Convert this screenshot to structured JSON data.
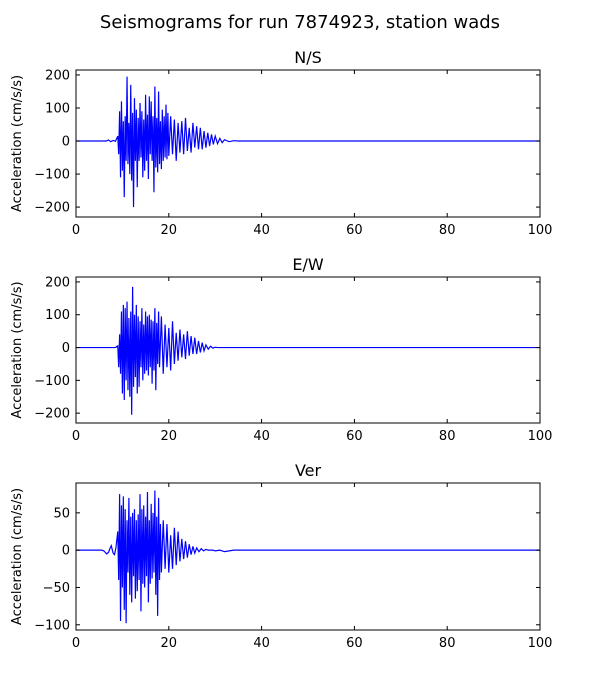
{
  "figure": {
    "suptitle": "Seismograms for run 7874923, station wads",
    "line_color": "#0000ff"
  },
  "chart_data": [
    {
      "type": "line",
      "title": "N/S",
      "xlabel": "",
      "ylabel": "Acceleration (cm/s/s)",
      "xlim": [
        0,
        100
      ],
      "ylim": [
        -230,
        215
      ],
      "xticks": [
        0,
        20,
        40,
        60,
        80,
        100
      ],
      "yticks": [
        -200,
        -100,
        0,
        100,
        200
      ],
      "x_tick_labels": [
        "0",
        "20",
        "40",
        "60",
        "80",
        "100"
      ],
      "y_tick_labels": [
        "−200",
        "−100",
        "0",
        "100",
        "200"
      ],
      "grid": false,
      "series": [
        {
          "color": "#0000ff",
          "x": [
            0,
            6.5,
            7.0,
            7.5,
            8.0,
            8.5,
            9.0,
            9.2,
            9.4,
            9.6,
            9.8,
            10.0,
            10.2,
            10.4,
            10.6,
            10.8,
            11.0,
            11.2,
            11.4,
            11.6,
            11.8,
            12.0,
            12.2,
            12.4,
            12.6,
            12.8,
            13.0,
            13.2,
            13.4,
            13.6,
            13.8,
            14.0,
            14.2,
            14.4,
            14.6,
            14.8,
            15.0,
            15.2,
            15.4,
            15.6,
            15.8,
            16.0,
            16.2,
            16.4,
            16.6,
            16.8,
            17.0,
            17.2,
            17.4,
            17.6,
            17.8,
            18.0,
            18.2,
            18.4,
            18.6,
            18.8,
            19.0,
            19.2,
            19.4,
            19.6,
            19.8,
            20.0,
            20.4,
            20.8,
            21.2,
            21.6,
            22.0,
            22.4,
            22.8,
            23.2,
            23.6,
            24.0,
            24.4,
            24.8,
            25.2,
            25.6,
            26.0,
            26.4,
            26.8,
            27.2,
            27.6,
            28.0,
            28.4,
            28.8,
            29.2,
            29.6,
            30.0,
            30.5,
            31.0,
            31.5,
            32.0,
            33.0,
            34.0,
            35.0,
            100
          ],
          "y": [
            0,
            0,
            3,
            -2,
            2,
            -1,
            15,
            -40,
            90,
            -110,
            120,
            -90,
            60,
            -170,
            75,
            -60,
            195,
            -70,
            55,
            -100,
            170,
            -120,
            85,
            -200,
            130,
            -60,
            95,
            -140,
            70,
            -60,
            115,
            -50,
            90,
            -110,
            65,
            -90,
            140,
            -60,
            80,
            -115,
            135,
            -40,
            120,
            -60,
            75,
            -155,
            165,
            -80,
            70,
            -95,
            150,
            -70,
            60,
            -85,
            95,
            -60,
            75,
            -50,
            110,
            -55,
            85,
            -45,
            75,
            -40,
            65,
            -60,
            55,
            -35,
            60,
            -40,
            70,
            -30,
            40,
            -35,
            55,
            -20,
            45,
            -25,
            40,
            -25,
            30,
            -20,
            25,
            -15,
            20,
            -10,
            15,
            -8,
            8,
            -5,
            4,
            -2,
            1,
            0,
            0
          ]
        }
      ]
    },
    {
      "type": "line",
      "title": "E/W",
      "xlabel": "",
      "ylabel": "Acceleration (cm/s/s)",
      "xlim": [
        0,
        100
      ],
      "ylim": [
        -230,
        215
      ],
      "xticks": [
        0,
        20,
        40,
        60,
        80,
        100
      ],
      "yticks": [
        -200,
        -100,
        0,
        100,
        200
      ],
      "x_tick_labels": [
        "0",
        "20",
        "40",
        "60",
        "80",
        "100"
      ],
      "y_tick_labels": [
        "−200",
        "−100",
        "0",
        "100",
        "200"
      ],
      "grid": false,
      "series": [
        {
          "color": "#0000ff",
          "x": [
            0,
            8.5,
            9.0,
            9.2,
            9.4,
            9.6,
            9.8,
            10.0,
            10.2,
            10.4,
            10.6,
            10.8,
            11.0,
            11.2,
            11.4,
            11.6,
            11.8,
            12.0,
            12.2,
            12.4,
            12.6,
            12.8,
            13.0,
            13.2,
            13.4,
            13.6,
            13.8,
            14.0,
            14.2,
            14.4,
            14.6,
            14.8,
            15.0,
            15.2,
            15.4,
            15.6,
            15.8,
            16.0,
            16.2,
            16.4,
            16.6,
            16.8,
            17.0,
            17.2,
            17.4,
            17.6,
            17.8,
            18.0,
            18.4,
            18.8,
            19.2,
            19.6,
            20.0,
            20.4,
            20.8,
            21.2,
            21.6,
            22.0,
            22.4,
            22.8,
            23.2,
            23.6,
            24.0,
            24.4,
            24.8,
            25.2,
            25.6,
            26.0,
            26.4,
            26.8,
            27.2,
            27.6,
            28.0,
            28.5,
            29.0,
            29.5,
            30.0,
            30.5,
            31.0,
            32.0,
            33.0,
            100
          ],
          "y": [
            0,
            0,
            5,
            -60,
            40,
            -80,
            110,
            -140,
            130,
            -160,
            120,
            -100,
            140,
            -130,
            90,
            -150,
            110,
            -205,
            185,
            -120,
            100,
            -90,
            130,
            -140,
            95,
            -120,
            80,
            -60,
            120,
            -100,
            70,
            -80,
            110,
            -70,
            95,
            -85,
            100,
            -60,
            85,
            -110,
            80,
            -70,
            120,
            -130,
            75,
            -50,
            110,
            -60,
            95,
            -80,
            70,
            -60,
            60,
            -70,
            80,
            -50,
            45,
            -40,
            55,
            -30,
            40,
            -35,
            50,
            -25,
            35,
            -20,
            30,
            -20,
            20,
            -15,
            15,
            -10,
            8,
            -5,
            4,
            -2,
            1,
            0,
            0,
            0,
            0,
            0
          ]
        }
      ]
    },
    {
      "type": "line",
      "title": "Ver",
      "xlabel": "",
      "ylabel": "Acceleration (cm/s/s)",
      "xlim": [
        0,
        100
      ],
      "ylim": [
        -107,
        90
      ],
      "xticks": [
        0,
        20,
        40,
        60,
        80,
        100
      ],
      "yticks": [
        -100,
        -50,
        0,
        50
      ],
      "x_tick_labels": [
        "0",
        "20",
        "40",
        "60",
        "80",
        "100"
      ],
      "y_tick_labels": [
        "−100",
        "−50",
        "0",
        "50"
      ],
      "grid": false,
      "series": [
        {
          "color": "#0000ff",
          "x": [
            0,
            5.5,
            6.0,
            6.3,
            6.6,
            7.0,
            7.3,
            7.6,
            8.0,
            8.3,
            8.6,
            9.0,
            9.2,
            9.4,
            9.6,
            9.8,
            10.0,
            10.2,
            10.4,
            10.6,
            10.8,
            11.0,
            11.2,
            11.4,
            11.6,
            11.8,
            12.0,
            12.2,
            12.4,
            12.6,
            12.8,
            13.0,
            13.2,
            13.4,
            13.6,
            13.8,
            14.0,
            14.2,
            14.4,
            14.6,
            14.8,
            15.0,
            15.2,
            15.4,
            15.6,
            15.8,
            16.0,
            16.2,
            16.4,
            16.6,
            16.8,
            17.0,
            17.2,
            17.4,
            17.6,
            17.8,
            18.0,
            18.2,
            18.4,
            18.8,
            19.2,
            19.6,
            20.0,
            20.4,
            20.8,
            21.2,
            21.6,
            22.0,
            22.4,
            22.8,
            23.2,
            23.6,
            24.0,
            24.4,
            24.8,
            25.2,
            25.6,
            26.0,
            26.5,
            27.0,
            27.5,
            28.0,
            28.5,
            29.0,
            29.5,
            30.0,
            31.0,
            32.0,
            33.0,
            34.0,
            35.0,
            100
          ],
          "y": [
            0,
            0,
            -1,
            -3,
            -5,
            -3,
            2,
            6,
            -4,
            -6,
            3,
            25,
            -40,
            75,
            -95,
            60,
            -50,
            72,
            -80,
            55,
            -98,
            40,
            -30,
            70,
            -60,
            45,
            -70,
            50,
            -35,
            55,
            -65,
            40,
            -55,
            48,
            -40,
            75,
            -82,
            55,
            -45,
            60,
            -50,
            45,
            -35,
            78,
            -70,
            40,
            -45,
            62,
            -38,
            50,
            -30,
            80,
            -60,
            45,
            -88,
            70,
            -40,
            35,
            -30,
            40,
            -25,
            35,
            -30,
            20,
            -25,
            30,
            -20,
            25,
            -15,
            15,
            -12,
            12,
            -10,
            8,
            -6,
            5,
            -4,
            3,
            -2,
            2,
            -1,
            1,
            0,
            0,
            0,
            -1,
            0,
            -2,
            -1,
            0,
            0,
            0
          ]
        }
      ]
    }
  ]
}
